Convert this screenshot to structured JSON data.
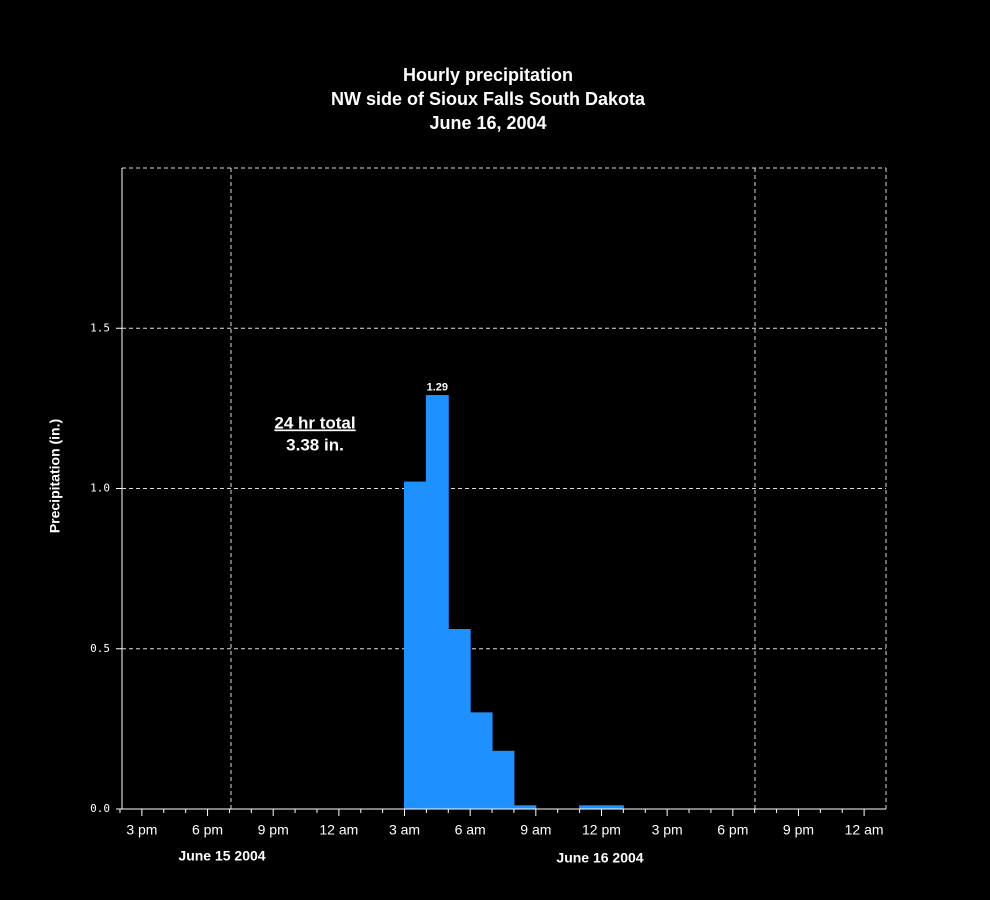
{
  "chart_data": {
    "type": "bar",
    "title": "Hourly precipitation",
    "subtitle": [
      "NW side of Sioux Falls South Dakota",
      "June 16, 2004"
    ],
    "y_label": "Precipitation (in.)",
    "date_labels": [
      "June 15 2004",
      "June 16 2004"
    ],
    "annotation": {
      "label": "24 hr total",
      "value": "3.38 in."
    },
    "categories": [
      null,
      "3 pm",
      null,
      null,
      "6 pm",
      null,
      null,
      "9 pm",
      null,
      null,
      "12 am",
      null,
      null,
      "3 am",
      null,
      null,
      "6 am",
      null,
      null,
      "9 am",
      null,
      null,
      "12 pm",
      null,
      null,
      "3 pm",
      null,
      null,
      "6 pm",
      null,
      null,
      "9 pm",
      null,
      null,
      "12 am"
    ],
    "values": [
      0,
      0,
      0,
      0,
      0,
      0,
      0,
      0,
      0,
      0,
      0,
      0,
      0,
      1.02,
      1.29,
      0.56,
      0.3,
      0.18,
      0.01,
      0,
      0,
      0.01,
      0.01,
      0,
      0,
      0,
      0,
      0,
      0,
      0,
      0,
      0,
      0,
      0,
      0
    ],
    "labeled_value_index": 14,
    "color": "#1e90ff",
    "ylim": [
      0,
      2.0
    ],
    "yticks": [
      {
        "value": 0,
        "label": "0.0"
      },
      0.5,
      {
        "value": 1,
        "label": "1.0"
      },
      1.5
    ],
    "grid": true
  }
}
